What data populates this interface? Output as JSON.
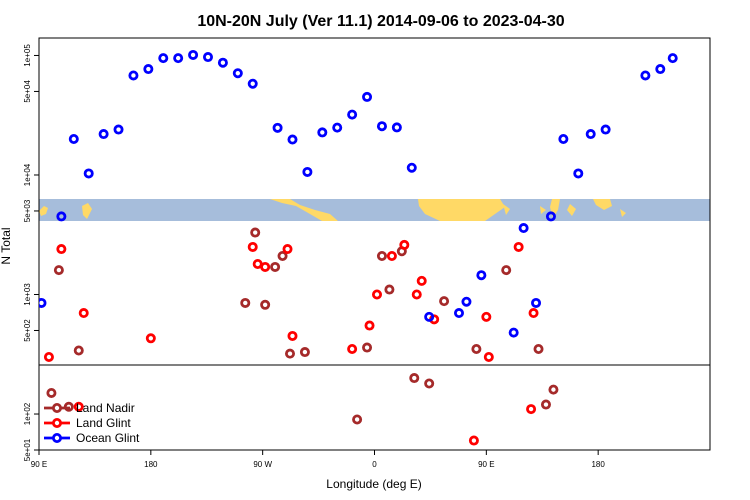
{
  "chart_data": {
    "type": "scatter",
    "title": "10N-20N July (Ver 11.1)   2014-09-06 to 2023-04-30",
    "xlabel": "Longitude (deg E)",
    "ylabel": "N Total",
    "y_scale": "log",
    "xlim": [
      -90,
      180
    ],
    "ylim": [
      50,
      140000
    ],
    "x_ticks": [
      {
        "value": -90,
        "label": "90 E"
      },
      {
        "value": -45,
        "label": "180"
      },
      {
        "value": 0,
        "label": "90 W"
      },
      {
        "value": 45,
        "label": "0"
      },
      {
        "value": 90,
        "label": "90 E"
      },
      {
        "value": 135,
        "label": "180"
      }
    ],
    "y_ticks": [
      {
        "value": 50,
        "label": "5e+01"
      },
      {
        "value": 100,
        "label": "1e+02"
      },
      {
        "value": 500,
        "label": "5e+02"
      },
      {
        "value": 1000,
        "label": "1e+03"
      },
      {
        "value": 5000,
        "label": "5e+03"
      },
      {
        "value": 10000,
        "label": "1e+04"
      },
      {
        "value": 50000,
        "label": "5e+04"
      },
      {
        "value": 100000,
        "label": "1e+05"
      }
    ],
    "map_strip": {
      "ocean_color": "#A6BDDB",
      "land_color": "#FFD966"
    },
    "legend_position": "bottom-left",
    "series": [
      {
        "name": "Land Nadir",
        "color": "#A52A2A",
        "points": [
          [
            -85,
            150
          ],
          [
            -82,
            1600
          ],
          [
            -78,
            115
          ],
          [
            -74,
            340
          ],
          [
            -7,
            850
          ],
          [
            -3,
            3300
          ],
          [
            1,
            820
          ],
          [
            5,
            1700
          ],
          [
            8,
            2100
          ],
          [
            11,
            320
          ],
          [
            17,
            330
          ],
          [
            38,
            90
          ],
          [
            42,
            360
          ],
          [
            48,
            2100
          ],
          [
            51,
            1100
          ],
          [
            56,
            2300
          ],
          [
            61,
            200
          ],
          [
            67,
            180
          ],
          [
            73,
            880
          ],
          [
            86,
            350
          ],
          [
            98,
            1600
          ],
          [
            111,
            350
          ],
          [
            114,
            120
          ],
          [
            117,
            160
          ]
        ]
      },
      {
        "name": "Land Glint",
        "color": "#FF0000",
        "points": [
          [
            -86,
            300
          ],
          [
            -81,
            2400
          ],
          [
            -74,
            115
          ],
          [
            -72,
            700
          ],
          [
            -45,
            430
          ],
          [
            -4,
            2500
          ],
          [
            -2,
            1800
          ],
          [
            1,
            1700
          ],
          [
            10,
            2400
          ],
          [
            12,
            450
          ],
          [
            36,
            350
          ],
          [
            43,
            550
          ],
          [
            46,
            1000
          ],
          [
            52,
            2100
          ],
          [
            57,
            2600
          ],
          [
            62,
            1000
          ],
          [
            64,
            1300
          ],
          [
            69,
            620
          ],
          [
            85,
            60
          ],
          [
            90,
            650
          ],
          [
            91,
            300
          ],
          [
            103,
            2500
          ],
          [
            108,
            110
          ],
          [
            109,
            700
          ]
        ]
      },
      {
        "name": "Ocean Glint",
        "color": "#0000FF",
        "points": [
          [
            -89,
            850
          ],
          [
            -81,
            4500
          ],
          [
            -76,
            20000
          ],
          [
            -70,
            10300
          ],
          [
            -64,
            22000
          ],
          [
            -58,
            24000
          ],
          [
            -52,
            68000
          ],
          [
            -46,
            77000
          ],
          [
            -40,
            95000
          ],
          [
            -34,
            95000
          ],
          [
            -28,
            101000
          ],
          [
            -22,
            97000
          ],
          [
            -16,
            87000
          ],
          [
            -10,
            71000
          ],
          [
            -4,
            58000
          ],
          [
            6,
            24800
          ],
          [
            12,
            19800
          ],
          [
            18,
            10600
          ],
          [
            24,
            22700
          ],
          [
            30,
            24900
          ],
          [
            36,
            32000
          ],
          [
            42,
            45000
          ],
          [
            48,
            25600
          ],
          [
            54,
            25000
          ],
          [
            60,
            11500
          ],
          [
            67,
            650
          ],
          [
            79,
            700
          ],
          [
            82,
            870
          ],
          [
            88,
            1450
          ],
          [
            101,
            480
          ],
          [
            105,
            3600
          ],
          [
            110,
            850
          ],
          [
            116,
            4500
          ],
          [
            121,
            20000
          ],
          [
            127,
            10300
          ],
          [
            132,
            22000
          ],
          [
            138,
            24000
          ],
          [
            154,
            68000
          ],
          [
            160,
            77000
          ],
          [
            165,
            95000
          ]
        ]
      }
    ]
  }
}
